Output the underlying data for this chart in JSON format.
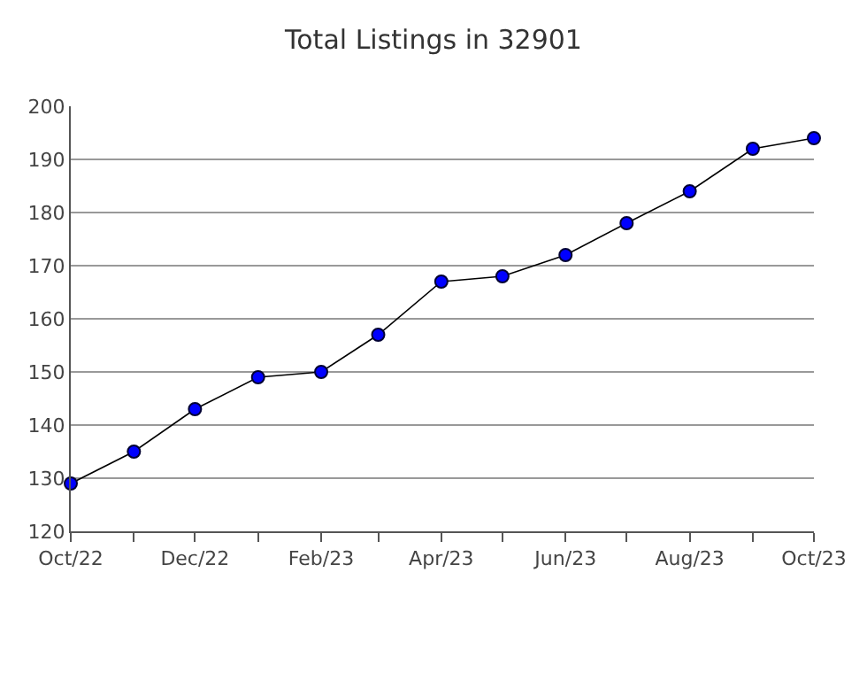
{
  "chart_data": {
    "type": "line",
    "title": "Total Listings in 32901",
    "x": [
      "2022-10",
      "2022-11",
      "2022-12",
      "2023-01",
      "2023-02",
      "2023-03",
      "2023-04",
      "2023-05",
      "2023-06",
      "2023-07",
      "2023-08",
      "2023-09",
      "2023-10"
    ],
    "series": [
      {
        "color": "#0000ff",
        "values": [
          129,
          135,
          143,
          149,
          150,
          157,
          167,
          168,
          172,
          178,
          184,
          192,
          194
        ]
      }
    ],
    "xlim": [
      "2022-10",
      "2023-10"
    ],
    "xticks": [
      {
        "value": "2022-10",
        "label": "Oct/22"
      },
      {
        "value": "2022-11",
        "label": null
      },
      {
        "value": "2022-12",
        "label": "Dec/22"
      },
      {
        "value": "2023-01",
        "label": null
      },
      {
        "value": "2023-02",
        "label": "Feb/23"
      },
      {
        "value": "2023-03",
        "label": null
      },
      {
        "value": "2023-04",
        "label": "Apr/23"
      },
      {
        "value": "2023-05",
        "label": null
      },
      {
        "value": "2023-06",
        "label": "Jun/23"
      },
      {
        "value": "2023-07",
        "label": null
      },
      {
        "value": "2023-08",
        "label": "Aug/23"
      },
      {
        "value": "2023-09",
        "label": null
      },
      {
        "value": "2023-10",
        "label": "Oct/23"
      }
    ],
    "ylim": [
      120,
      200
    ],
    "yticks": [
      120,
      130,
      140,
      150,
      160,
      170,
      180,
      190,
      200
    ],
    "grid": "y",
    "marker": "circle",
    "line_style": "solid"
  }
}
